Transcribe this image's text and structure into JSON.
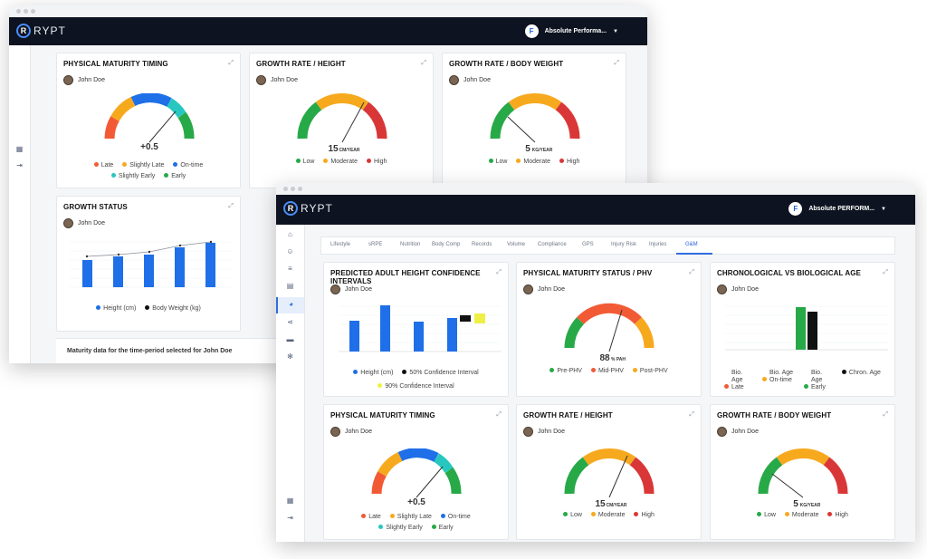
{
  "app": {
    "logo_letter": "R",
    "logo_text": "RYPT"
  },
  "back_window": {
    "org_badge": "F",
    "org_name": "Absolute Performa...",
    "cards": {
      "maturity_timing": {
        "title": "PHYSICAL MATURITY TIMING",
        "user": "John Doe",
        "value": "+0.5",
        "legend": [
          "Late",
          "Slightly Late",
          "On-time",
          "Slightly Early",
          "Early"
        ]
      },
      "growth_height": {
        "title": "GROWTH RATE / HEIGHT",
        "user": "John Doe",
        "value": "15",
        "unit": "CM/YEAR",
        "legend": [
          "Low",
          "Moderate",
          "High"
        ]
      },
      "growth_weight": {
        "title": "GROWTH RATE / BODY WEIGHT",
        "user": "John Doe",
        "value": "5",
        "unit": "KG/YEAR",
        "legend": [
          "Low",
          "Moderate",
          "High"
        ]
      },
      "growth_status": {
        "title": "GROWTH STATUS",
        "user": "John Doe",
        "legend": [
          "Height (cm)",
          "Body Weight (kg)"
        ]
      }
    },
    "footer": "Maturity data for the time-period selected for John Doe"
  },
  "front_window": {
    "org_badge": "F",
    "org_name": "Absolute PERFORM...",
    "tabs": [
      "Lifestyle",
      "sRPE",
      "Nutrition",
      "Body Comp",
      "Records",
      "Volume",
      "Compliance",
      "GPS",
      "Injury Risk",
      "Injuries",
      "G&M"
    ],
    "active_tab": "G&M",
    "cards": {
      "adult_height": {
        "title": "PREDICTED ADULT HEIGHT CONFIDENCE INTERVALS",
        "user": "John Doe",
        "legend": [
          "Height (cm)",
          "50% Confidence Interval",
          "90% Confidence Interval"
        ]
      },
      "phv": {
        "title": "PHYSICAL MATURITY STATUS / PHV",
        "user": "John Doe",
        "value": "88",
        "unit": "% PAH",
        "legend": [
          "Pre-PHV",
          "Mid-PHV",
          "Post-PHV"
        ]
      },
      "chrono_bio": {
        "title": "CHRONOLOGICAL VS BIOLOGICAL AGE",
        "user": "John Doe",
        "legend": [
          "Bio. Age Late",
          "Bio. Age On-time",
          "Bio. Age Early",
          "Chron. Age"
        ]
      },
      "maturity_timing": {
        "title": "PHYSICAL MATURITY TIMING",
        "user": "John Doe",
        "value": "+0.5",
        "legend": [
          "Late",
          "Slightly Late",
          "On-time",
          "Slightly Early",
          "Early"
        ]
      },
      "growth_height": {
        "title": "GROWTH RATE / HEIGHT",
        "user": "John Doe",
        "value": "15",
        "unit": "CM/YEAR",
        "legend": [
          "Low",
          "Moderate",
          "High"
        ]
      },
      "growth_weight": {
        "title": "GROWTH RATE / BODY WEIGHT",
        "user": "John Doe",
        "value": "5",
        "unit": "KG/YEAR",
        "legend": [
          "Low",
          "Moderate",
          "High"
        ]
      }
    }
  },
  "colors": {
    "late": "#f25a35",
    "slightly_late": "#f7a91e",
    "on_time": "#1f6fe8",
    "slightly_early": "#27c7c0",
    "early": "#27a948",
    "low": "#27a948",
    "moderate": "#f7a91e",
    "high": "#d93737",
    "bar": "#1f6fe8",
    "ci50": "#111111",
    "ci90": "#eef046"
  },
  "icons": [
    "calendar-icon",
    "logout-icon",
    "home-icon",
    "users-icon",
    "list-icon",
    "clipboard-icon",
    "chart-icon",
    "share-icon",
    "message-icon",
    "settings-icon"
  ]
}
